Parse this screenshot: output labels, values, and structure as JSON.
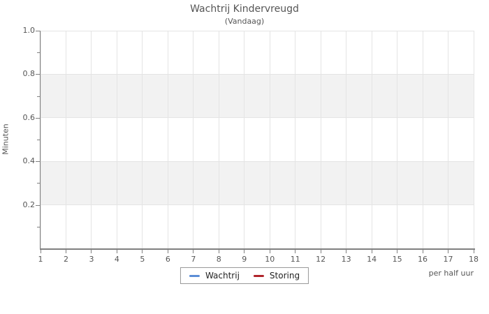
{
  "chart_data": {
    "type": "line",
    "title": "Wachtrij Kindervreugd",
    "subtitle": "(Vandaag)",
    "ylabel": "Minuten",
    "xlabel": "per half uur",
    "xlim": [
      1,
      18
    ],
    "ylim": [
      0,
      1
    ],
    "x_ticks": [
      1,
      2,
      3,
      4,
      5,
      6,
      7,
      8,
      9,
      10,
      11,
      12,
      13,
      14,
      15,
      16,
      17,
      18
    ],
    "y_ticks": [
      0.2,
      0.4,
      0.6,
      0.8,
      1.0
    ],
    "y_minor_ticks": [
      0.1,
      0.3,
      0.5,
      0.7,
      0.9
    ],
    "grid": true,
    "bands": [
      {
        "from": 0.2,
        "to": 0.4
      },
      {
        "from": 0.6,
        "to": 0.8
      }
    ],
    "legend_position": "bottom-center",
    "series": [
      {
        "name": "Wachtrij",
        "color": "#5b8dd6",
        "values": []
      },
      {
        "name": "Storing",
        "color": "#b0252b",
        "values": []
      }
    ]
  },
  "colors": {
    "background": "#ffffff",
    "band": "#f2f2f2",
    "grid": "#e4e4e4",
    "axis": "#808080",
    "tick_label": "#555555",
    "title_text": "#555555",
    "legend_border": "#999999",
    "legend_text": "#222222"
  }
}
